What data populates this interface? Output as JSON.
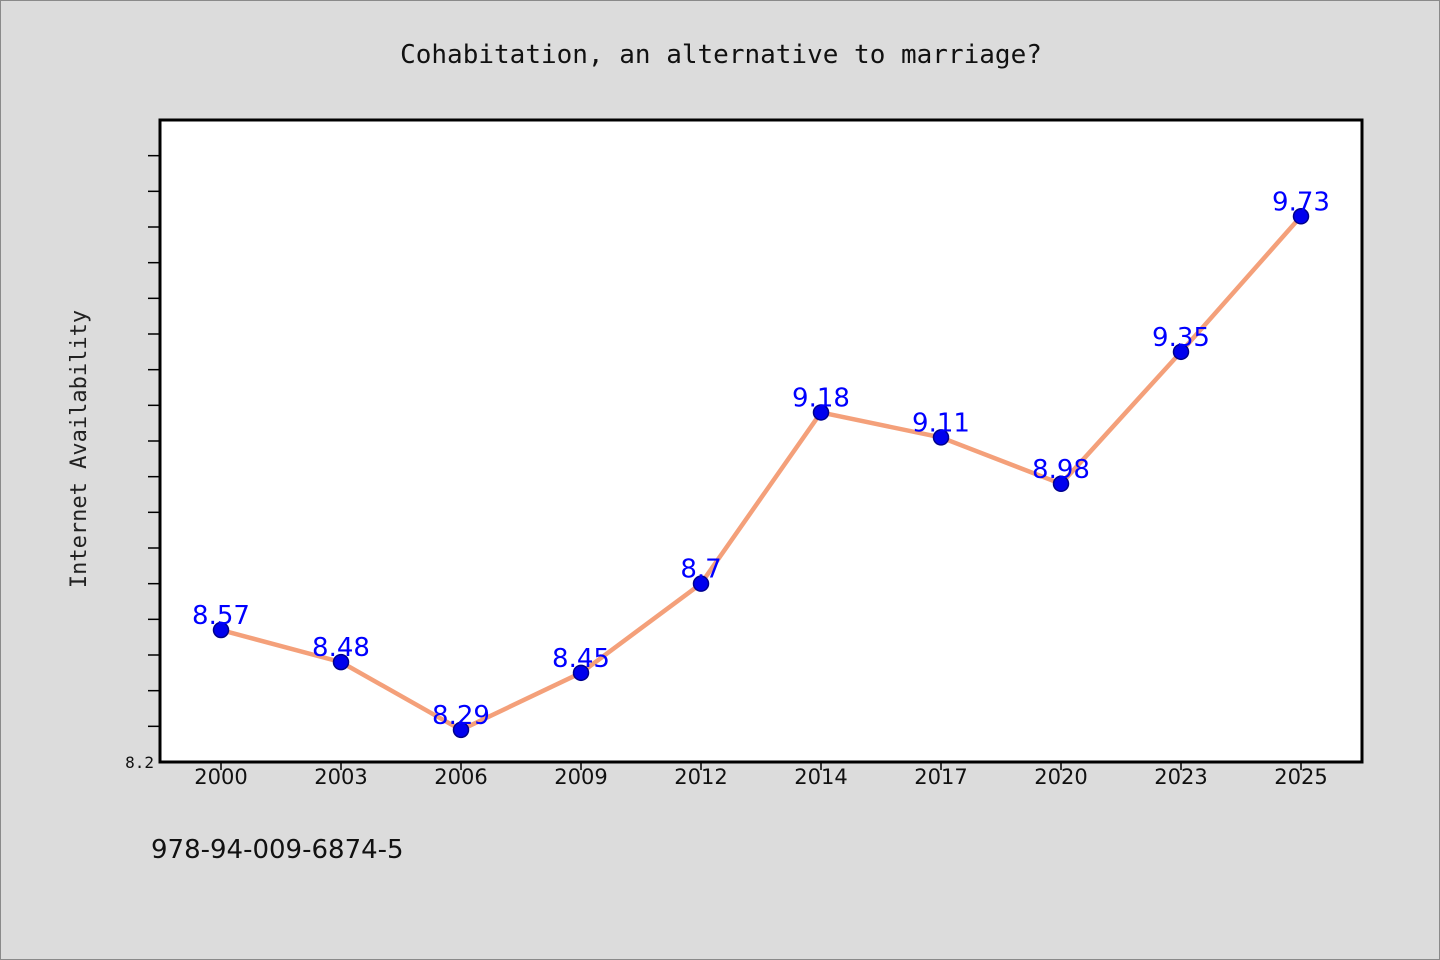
{
  "chart_data": {
    "type": "line",
    "title": "Cohabitation, an alternative to marriage?",
    "xlabel": "",
    "ylabel": "Internet Availability",
    "categories": [
      "2000",
      "2003",
      "2006",
      "2009",
      "2012",
      "2014",
      "2017",
      "2020",
      "2023",
      "2025"
    ],
    "series": [
      {
        "values": [
          8.57,
          8.48,
          8.29,
          8.45,
          8.7,
          9.18,
          9.11,
          8.98,
          9.35,
          9.73
        ]
      }
    ],
    "value_labels": [
      "8.57",
      "8.48",
      "8.29",
      "8.45",
      "8.7",
      "9.18",
      "9.11",
      "8.98",
      "9.35",
      "9.73"
    ],
    "ylim": [
      8.2,
      10.0
    ],
    "y_tick_labels": [
      {
        "value": 8.2,
        "label": "8.2"
      }
    ],
    "y_minor_tick_step": 0.1,
    "grid": false,
    "legend": "none",
    "colors": {
      "line": "#f4a07a",
      "marker": "#0000ee",
      "marker_edge": "#00008b",
      "value_label": "#0000ff",
      "plot_background": "#ffffff",
      "page_background": "#dcdcdc"
    }
  },
  "footer": {
    "code": "978-94-009-6874-5"
  }
}
